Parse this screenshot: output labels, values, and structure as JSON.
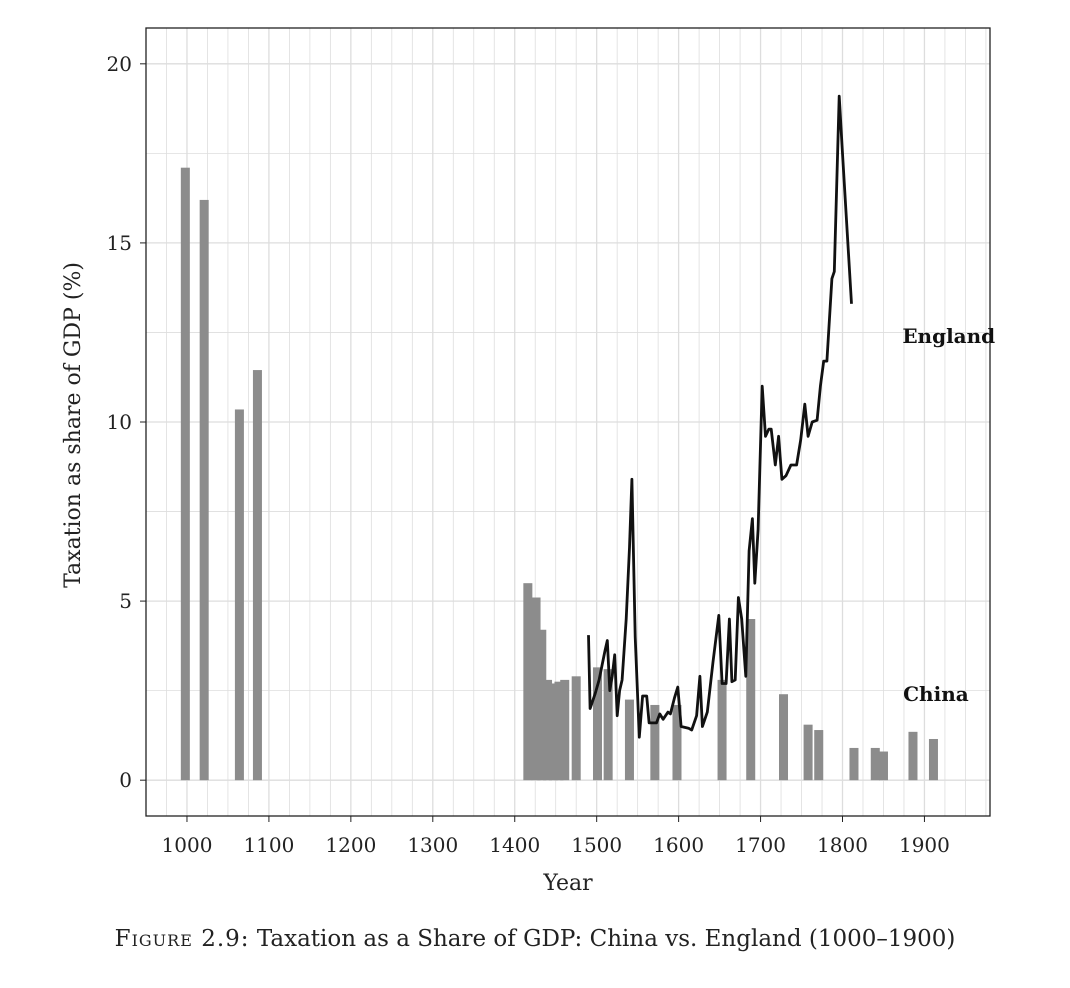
{
  "chart_data": {
    "type": "bar",
    "xlabel": "Year",
    "ylabel": "Taxation as share of GDP (%)",
    "xlim": [
      950,
      1980
    ],
    "ylim": [
      -1,
      21
    ],
    "xticks": [
      1000,
      1100,
      1200,
      1300,
      1400,
      1500,
      1600,
      1700,
      1800,
      1900
    ],
    "yticks": [
      0,
      5,
      10,
      15,
      20
    ],
    "grid": true,
    "colors": {
      "bars": "#8c8c8c",
      "line": "#111111",
      "grid": "#dddddd"
    },
    "series": [
      {
        "name": "China",
        "type": "bar",
        "bar_width_years": 11,
        "points": [
          [
            998,
            17.1
          ],
          [
            1021,
            16.2
          ],
          [
            1064,
            10.35
          ],
          [
            1086,
            11.45
          ],
          [
            1416,
            5.5
          ],
          [
            1426,
            5.1
          ],
          [
            1433,
            4.2
          ],
          [
            1440,
            2.8
          ],
          [
            1447,
            2.7
          ],
          [
            1454,
            2.75
          ],
          [
            1461,
            2.8
          ],
          [
            1475,
            2.9
          ],
          [
            1501,
            3.15
          ],
          [
            1514,
            3.1
          ],
          [
            1540,
            2.25
          ],
          [
            1571,
            2.1
          ],
          [
            1598,
            2.1
          ],
          [
            1653,
            2.8
          ],
          [
            1688,
            4.5
          ],
          [
            1728,
            2.4
          ],
          [
            1758,
            1.55
          ],
          [
            1771,
            1.4
          ],
          [
            1814,
            0.9
          ],
          [
            1840,
            0.9
          ],
          [
            1850,
            0.8
          ],
          [
            1886,
            1.35
          ],
          [
            1911,
            1.15
          ]
        ]
      },
      {
        "name": "England",
        "type": "line",
        "points": [
          [
            1490,
            4.05
          ],
          [
            1492,
            2.0
          ],
          [
            1498,
            2.4
          ],
          [
            1503,
            2.8
          ],
          [
            1510,
            3.6
          ],
          [
            1513,
            3.9
          ],
          [
            1516,
            2.5
          ],
          [
            1519,
            2.9
          ],
          [
            1522,
            3.5
          ],
          [
            1525,
            1.8
          ],
          [
            1528,
            2.5
          ],
          [
            1531,
            2.8
          ],
          [
            1536,
            4.5
          ],
          [
            1540,
            6.5
          ],
          [
            1543,
            8.4
          ],
          [
            1547,
            4.0
          ],
          [
            1550,
            2.3
          ],
          [
            1552,
            1.2
          ],
          [
            1556,
            2.35
          ],
          [
            1561,
            2.35
          ],
          [
            1564,
            1.6
          ],
          [
            1573,
            1.6
          ],
          [
            1577,
            1.85
          ],
          [
            1581,
            1.7
          ],
          [
            1587,
            1.9
          ],
          [
            1590,
            1.85
          ],
          [
            1595,
            2.3
          ],
          [
            1599,
            2.6
          ],
          [
            1603,
            1.5
          ],
          [
            1612,
            1.45
          ],
          [
            1616,
            1.4
          ],
          [
            1622,
            1.8
          ],
          [
            1626,
            2.9
          ],
          [
            1629,
            1.5
          ],
          [
            1635,
            1.9
          ],
          [
            1642,
            3.3
          ],
          [
            1649,
            4.6
          ],
          [
            1653,
            2.7
          ],
          [
            1658,
            2.7
          ],
          [
            1662,
            4.5
          ],
          [
            1665,
            2.75
          ],
          [
            1669,
            2.8
          ],
          [
            1673,
            5.1
          ],
          [
            1677,
            4.5
          ],
          [
            1682,
            2.9
          ],
          [
            1686,
            6.4
          ],
          [
            1690,
            7.3
          ],
          [
            1693,
            5.5
          ],
          [
            1697,
            7.0
          ],
          [
            1702,
            11.0
          ],
          [
            1706,
            9.6
          ],
          [
            1710,
            9.8
          ],
          [
            1713,
            9.8
          ],
          [
            1718,
            8.8
          ],
          [
            1722,
            9.6
          ],
          [
            1726,
            8.4
          ],
          [
            1731,
            8.5
          ],
          [
            1737,
            8.8
          ],
          [
            1744,
            8.8
          ],
          [
            1749,
            9.5
          ],
          [
            1754,
            10.5
          ],
          [
            1758,
            9.6
          ],
          [
            1763,
            10.0
          ],
          [
            1769,
            10.05
          ],
          [
            1773,
            11.0
          ],
          [
            1777,
            11.7
          ],
          [
            1781,
            11.7
          ],
          [
            1787,
            14.0
          ],
          [
            1790,
            14.2
          ],
          [
            1796,
            19.1
          ],
          [
            1800,
            17.5
          ],
          [
            1811,
            13.3
          ]
        ]
      }
    ],
    "annotations": [
      {
        "text": "England",
        "x": 1873,
        "y": 12.4
      },
      {
        "text": "China",
        "x": 1874,
        "y": 2.4
      }
    ]
  },
  "caption": {
    "figure_number": "Figure 2.9:",
    "title": "Taxation as a Share of GDP: China vs. England (1000–1900)"
  }
}
